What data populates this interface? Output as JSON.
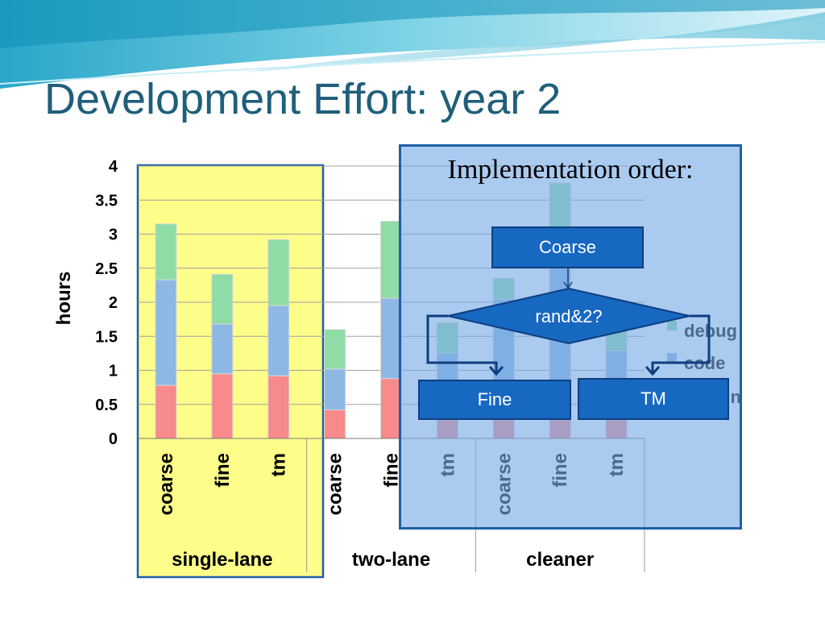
{
  "slide": {
    "title": "Development Effort: year 2",
    "accent_color": "#1f5f7a",
    "highlight_color": "#fdfd8a"
  },
  "chart_data": {
    "type": "bar",
    "stacked": true,
    "ylabel": "hours",
    "ylim": [
      0,
      4
    ],
    "yticks": [
      "0",
      "0.5",
      "1",
      "1.5",
      "2",
      "2.5",
      "3",
      "3.5",
      "4"
    ],
    "grid": true,
    "categories": [
      "coarse",
      "fine",
      "tm",
      "coarse",
      "fine",
      "tm",
      "coarse",
      "fine",
      "tm"
    ],
    "groups": [
      {
        "label": "single-lane",
        "span": [
          0,
          2
        ]
      },
      {
        "label": "two-lane",
        "span": [
          3,
          5
        ]
      },
      {
        "label": "cleaner",
        "span": [
          6,
          8
        ]
      }
    ],
    "series": [
      {
        "name": "design",
        "color": "#f78a8a",
        "values": [
          0.78,
          0.95,
          0.92,
          0.42,
          0.88,
          0.45,
          0.5,
          0.8,
          0.42
        ]
      },
      {
        "name": "code",
        "color": "#8db8e3",
        "values": [
          1.55,
          0.73,
          1.03,
          0.6,
          1.18,
          0.8,
          1.55,
          2.15,
          0.87
        ]
      },
      {
        "name": "debug",
        "color": "#8fdca6",
        "values": [
          0.82,
          0.73,
          0.97,
          0.58,
          1.13,
          0.45,
          0.3,
          0.8,
          0.3
        ]
      }
    ],
    "legend_position": "right"
  },
  "implementation": {
    "title": "Implementation order:",
    "panel_color": "#78aae6",
    "box_color": "#1768c1",
    "start": "Coarse",
    "decision": "rand&2?",
    "left": "Fine",
    "right": "TM"
  }
}
